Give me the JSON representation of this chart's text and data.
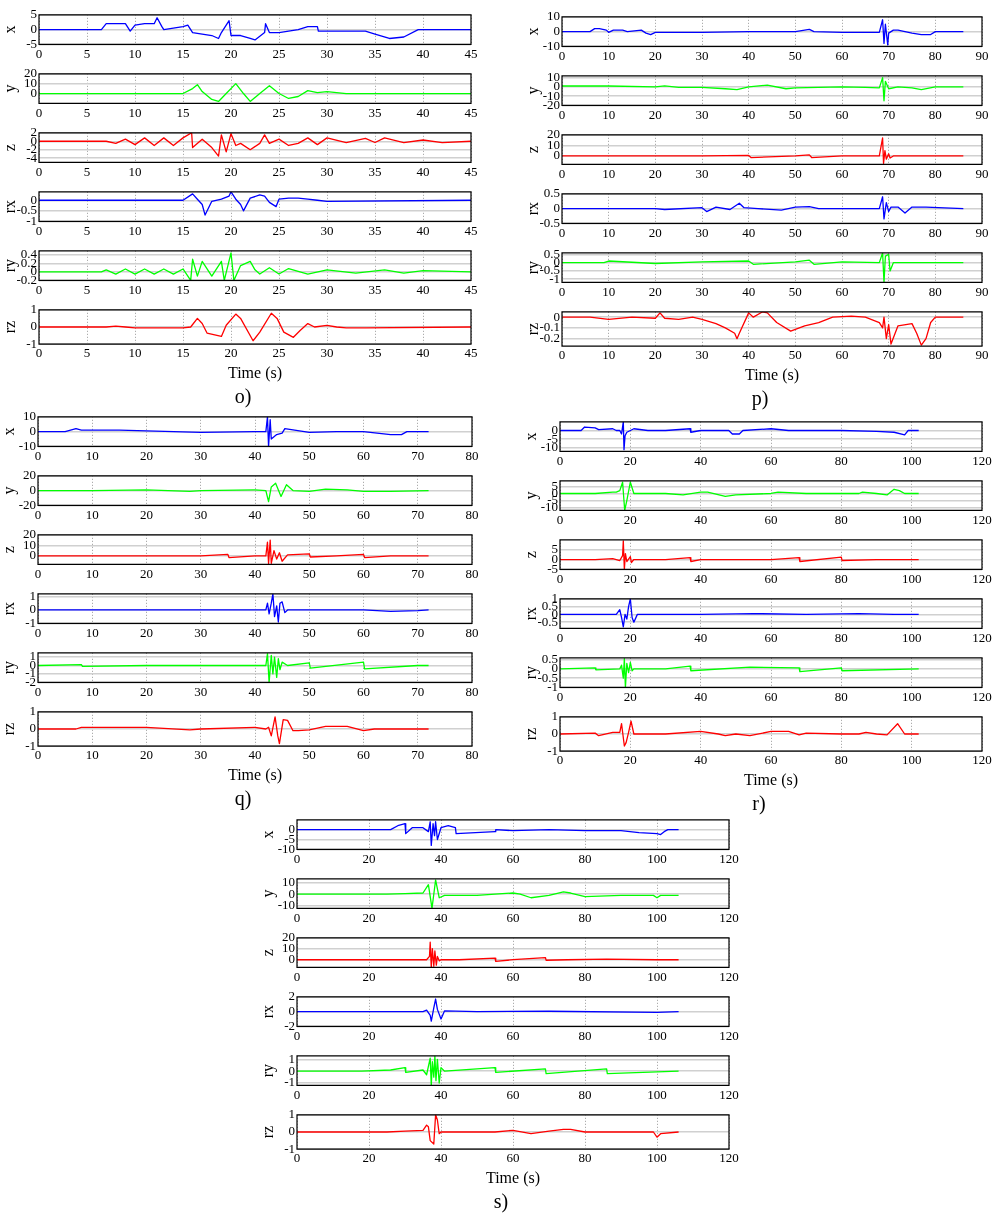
{
  "chart_data": [
    {
      "type": "line",
      "ylabel": "x",
      "color": "#0000ff",
      "xlim": [
        0,
        45
      ],
      "xticks": [
        0,
        5,
        10,
        15,
        20,
        25,
        30,
        35,
        40,
        45
      ],
      "ylim": [
        -5,
        5
      ],
      "yticks": [
        -5,
        0,
        5
      ],
      "grid": true,
      "x": [
        0,
        6.5,
        7,
        8,
        9,
        9.5,
        10,
        11,
        12,
        12.3,
        12.8,
        13,
        15,
        15.5,
        16,
        17,
        18,
        18.7,
        19,
        19.8,
        20,
        21,
        22,
        22.5,
        23.5,
        23.6,
        24,
        25,
        27,
        28,
        29,
        29.1,
        34,
        35,
        36.5,
        38,
        39.5,
        45
      ],
      "values": [
        0,
        0,
        2,
        2,
        2,
        -0.5,
        1.5,
        2,
        2,
        4,
        1,
        0,
        1,
        1.5,
        -1,
        -1.5,
        -2,
        -3,
        -1,
        3,
        -2,
        -2,
        -3,
        -3.5,
        -1,
        2,
        -1,
        -1,
        0,
        1,
        1,
        -0.5,
        -0.5,
        -1.5,
        -3,
        -2.5,
        0,
        0
      ]
    },
    {
      "type": "line",
      "ylabel": "y",
      "color": "#00ff00",
      "xlim": [
        0,
        45
      ],
      "xticks": [
        0,
        5,
        10,
        15,
        20,
        25,
        30,
        35,
        40,
        45
      ],
      "ylim": [
        -10,
        20
      ],
      "yticks": [
        0,
        10,
        20
      ],
      "grid": true,
      "x": [
        0,
        15,
        16,
        16.5,
        17,
        18,
        18.7,
        19.5,
        20.5,
        21.3,
        22,
        23,
        24,
        25,
        26,
        27,
        28,
        29,
        30,
        32,
        35,
        45
      ],
      "values": [
        0,
        0,
        5,
        9,
        2,
        -6,
        -8,
        0,
        10,
        0,
        -8,
        0,
        8,
        0,
        -5,
        -3,
        3,
        1,
        2,
        0,
        0,
        0
      ]
    },
    {
      "type": "line",
      "ylabel": "z",
      "color": "#ff0000",
      "xlim": [
        0,
        45
      ],
      "xticks": [
        0,
        5,
        10,
        15,
        20,
        25,
        30,
        35,
        40,
        45
      ],
      "ylim": [
        -5,
        2
      ],
      "yticks": [
        -4,
        -2,
        0,
        2
      ],
      "grid": true,
      "x": [
        0,
        7,
        8,
        9,
        10,
        11,
        12,
        13,
        14,
        15,
        15.9,
        16,
        17,
        18,
        18.7,
        19,
        19.5,
        20,
        20.5,
        21,
        22,
        23,
        23.5,
        24,
        25,
        26,
        27,
        28,
        29,
        30,
        32,
        34,
        35,
        36,
        38,
        40,
        42,
        45
      ],
      "values": [
        0,
        0,
        -0.5,
        0.5,
        -0.8,
        0.8,
        -1,
        0.8,
        -1,
        0.8,
        2,
        -1.5,
        0.5,
        -1.5,
        -3.5,
        1.5,
        -2.5,
        1.8,
        -1,
        -0.5,
        -2,
        -0.5,
        1.5,
        -0.5,
        0.5,
        -1,
        -0.5,
        0.8,
        -0.8,
        0.8,
        -0.3,
        0.7,
        -0.3,
        0.8,
        -0.3,
        0.3,
        -0.3,
        0
      ]
    },
    {
      "type": "line",
      "ylabel": "rx",
      "color": "#0000ff",
      "xlim": [
        0,
        45
      ],
      "xticks": [
        0,
        5,
        10,
        15,
        20,
        25,
        30,
        35,
        40,
        45
      ],
      "ylim": [
        -1,
        0.4
      ],
      "yticks": [
        -1,
        -0.5,
        0
      ],
      "grid": true,
      "x": [
        0,
        15,
        16,
        16.5,
        17,
        17.3,
        18,
        19,
        19.8,
        20,
        20.5,
        21,
        21.3,
        22,
        23,
        23.5,
        24,
        24.7,
        25,
        26,
        27,
        28,
        29,
        30,
        45
      ],
      "values": [
        0,
        0,
        0.3,
        0.05,
        -0.2,
        -0.7,
        -0.05,
        0.05,
        0.2,
        0.4,
        0.05,
        -0.2,
        -0.5,
        0.1,
        0.25,
        0.2,
        -0.1,
        -0.3,
        0.05,
        0.1,
        0.1,
        0.05,
        0,
        -0.05,
        0
      ]
    },
    {
      "type": "line",
      "ylabel": "ry",
      "color": "#00ff00",
      "xlim": [
        0,
        45
      ],
      "xticks": [
        0,
        5,
        10,
        15,
        20,
        25,
        30,
        35,
        40,
        45
      ],
      "ylim": [
        -0.2,
        0.5
      ],
      "yticks": [
        -0.2,
        0,
        0.2,
        0.4
      ],
      "grid": true,
      "x": [
        0,
        6.5,
        7,
        8,
        9,
        10,
        11,
        12,
        13,
        14,
        15,
        15.8,
        16,
        16.5,
        17,
        18,
        19,
        19.3,
        20,
        20.3,
        21,
        22,
        22.5,
        23,
        24,
        25,
        26,
        28,
        30,
        33,
        36,
        38,
        40,
        45
      ],
      "values": [
        0,
        0,
        0.05,
        -0.05,
        0.07,
        -0.05,
        0.07,
        -0.05,
        0.07,
        -0.05,
        0.07,
        -0.2,
        0.3,
        -0.1,
        0.25,
        -0.1,
        0.25,
        -0.2,
        0.45,
        -0.2,
        0.15,
        0.25,
        0.05,
        -0.05,
        0.1,
        -0.05,
        0.08,
        -0.05,
        0.05,
        -0.03,
        0.05,
        -0.03,
        0.03,
        0
      ]
    },
    {
      "type": "line",
      "ylabel": "rz",
      "xlabel": "Time (s)",
      "annotations": [
        "o)"
      ],
      "color": "#ff0000",
      "xlim": [
        0,
        45
      ],
      "xticks": [
        0,
        5,
        10,
        15,
        20,
        25,
        30,
        35,
        40,
        45
      ],
      "ylim": [
        -1,
        1
      ],
      "yticks": [
        -1,
        0,
        1
      ],
      "grid": true,
      "x": [
        0,
        7,
        8,
        9,
        10,
        15,
        15.8,
        16.5,
        17,
        17.5,
        19,
        19.5,
        20.5,
        21,
        22.3,
        23,
        24.2,
        24.8,
        25.5,
        26.5,
        27.2,
        28,
        28.7,
        30,
        31,
        32,
        34,
        45
      ],
      "values": [
        0,
        0,
        0.05,
        0,
        -0.05,
        -0.05,
        0,
        0.5,
        0.2,
        -0.35,
        -0.55,
        0.1,
        0.75,
        0.5,
        -0.8,
        -0.3,
        0.8,
        0.5,
        -0.3,
        -0.6,
        -0.2,
        0.2,
        0,
        0.1,
        0,
        -0.05,
        -0.05,
        0
      ]
    },
    {
      "type": "line",
      "ylabel": "x",
      "color": "#0000ff",
      "xlim": [
        0,
        90
      ],
      "xticks": [
        0,
        10,
        20,
        30,
        40,
        50,
        60,
        70,
        80,
        90
      ],
      "ylim": [
        -10,
        10
      ],
      "yticks": [
        -10,
        0,
        10
      ],
      "grid": true,
      "x": [
        0,
        6,
        7,
        8,
        9.5,
        10,
        11,
        13,
        14,
        17,
        18,
        19,
        20,
        30,
        40,
        50,
        53,
        54,
        60,
        68,
        68.7,
        69,
        69.3,
        69.8,
        70,
        71,
        72,
        75,
        77,
        79,
        80,
        81,
        86
      ],
      "values": [
        0,
        0,
        2,
        2,
        1,
        -0.5,
        1,
        1,
        0,
        1,
        -1,
        -2,
        -0.5,
        -0.5,
        0,
        0,
        1.5,
        0,
        -0.5,
        -0.5,
        8,
        -8,
        5,
        -9,
        -1,
        1,
        1,
        -1,
        -2,
        -2,
        0,
        0,
        0
      ]
    },
    {
      "type": "line",
      "ylabel": "y",
      "color": "#00ff00",
      "xlim": [
        0,
        90
      ],
      "xticks": [
        0,
        10,
        20,
        30,
        40,
        50,
        60,
        70,
        80,
        90
      ],
      "ylim": [
        -20,
        12
      ],
      "yticks": [
        -20,
        -10,
        0,
        10
      ],
      "grid": true,
      "x": [
        0,
        10,
        20,
        22,
        25,
        30,
        35,
        37.5,
        40,
        44,
        48,
        50,
        55,
        60,
        65,
        68,
        68.7,
        69,
        69.3,
        70,
        72,
        75,
        77,
        80,
        86
      ],
      "values": [
        1,
        1,
        0,
        1,
        -0.5,
        -0.5,
        -2,
        -3,
        0,
        2,
        -2,
        -1,
        -0.5,
        0,
        -0.5,
        -1,
        10,
        -15,
        6,
        -2,
        0,
        -1,
        -3,
        0,
        0
      ]
    },
    {
      "type": "line",
      "ylabel": "z",
      "color": "#ff0000",
      "xlim": [
        0,
        90
      ],
      "xticks": [
        0,
        10,
        20,
        30,
        40,
        50,
        60,
        70,
        80,
        90
      ],
      "ylim": [
        -8,
        20
      ],
      "yticks": [
        0,
        10,
        20
      ],
      "grid": true,
      "x": [
        0,
        20,
        30,
        40,
        40.5,
        50,
        53,
        53.5,
        60,
        68,
        68.7,
        68.9,
        69.2,
        69.5,
        70,
        70.3,
        71,
        75,
        86
      ],
      "values": [
        0,
        0,
        0,
        0.5,
        -1.5,
        0,
        1,
        -1.5,
        0,
        0,
        17,
        -7,
        5,
        -3,
        2,
        -2,
        0,
        0,
        0
      ]
    },
    {
      "type": "line",
      "ylabel": "rx",
      "color": "#0000ff",
      "xlim": [
        0,
        90
      ],
      "xticks": [
        0,
        10,
        20,
        30,
        40,
        50,
        60,
        70,
        80,
        90
      ],
      "ylim": [
        -0.5,
        0.5
      ],
      "yticks": [
        -0.5,
        0,
        0.5
      ],
      "grid": true,
      "x": [
        0,
        10,
        20,
        22,
        30,
        31,
        33,
        36,
        38,
        39,
        42,
        47,
        50,
        53,
        55,
        60,
        65,
        68,
        68.7,
        69,
        69.5,
        70,
        70.5,
        72,
        73.5,
        75,
        78,
        86
      ],
      "values": [
        0,
        0,
        0,
        -0.03,
        0.03,
        -0.1,
        0.05,
        -0.03,
        0.18,
        0.03,
        0,
        -0.05,
        0.05,
        0.07,
        0,
        0,
        0,
        0,
        0.4,
        -0.35,
        0.2,
        -0.1,
        0.05,
        0.05,
        -0.15,
        0.05,
        0.05,
        0
      ]
    },
    {
      "type": "line",
      "ylabel": "ry",
      "color": "#00ff00",
      "xlim": [
        0,
        90
      ],
      "xticks": [
        0,
        10,
        20,
        30,
        40,
        50,
        60,
        70,
        80,
        90
      ],
      "ylim": [
        -1.2,
        0.6
      ],
      "yticks": [
        -1,
        -0.5,
        0,
        0.5
      ],
      "grid": true,
      "x": [
        0,
        9,
        10,
        20,
        30,
        40,
        41,
        50,
        53,
        54,
        60,
        68,
        68.7,
        69,
        69.3,
        70,
        70.3,
        71,
        80,
        86
      ],
      "values": [
        0,
        0,
        0.1,
        -0.05,
        0.05,
        0.1,
        -0.1,
        0.05,
        0.15,
        -0.1,
        0.05,
        0,
        0.6,
        -1.2,
        0.4,
        0.5,
        -0.5,
        0,
        0,
        0
      ]
    },
    {
      "type": "line",
      "ylabel": "rz",
      "xlabel": "Time (s)",
      "annotations": [
        "p)"
      ],
      "color": "#ff0000",
      "xlim": [
        0,
        90
      ],
      "xticks": [
        0,
        10,
        20,
        30,
        40,
        50,
        60,
        70,
        80,
        90
      ],
      "ylim": [
        -0.27,
        0.05
      ],
      "yticks": [
        -0.2,
        -0.1,
        0
      ],
      "grid": true,
      "x": [
        0,
        6,
        10,
        15,
        20,
        21,
        22,
        25,
        28,
        30,
        33,
        35,
        37,
        37.5,
        38,
        40,
        41,
        43,
        44,
        46,
        49,
        52,
        55,
        58,
        62,
        65,
        68,
        68.7,
        69,
        69.5,
        70,
        70.5,
        72,
        75,
        76,
        77,
        78,
        79,
        80,
        86
      ],
      "values": [
        0,
        0,
        -0.02,
        0,
        -0.01,
        0.04,
        -0.01,
        -0.02,
        0,
        -0.02,
        -0.06,
        -0.1,
        -0.15,
        -0.2,
        -0.15,
        0.04,
        0,
        0.05,
        0.04,
        -0.05,
        -0.13,
        -0.08,
        -0.05,
        0,
        0.01,
        0,
        -0.05,
        -0.1,
        0,
        -0.2,
        -0.07,
        -0.25,
        -0.08,
        -0.06,
        -0.15,
        -0.26,
        -0.2,
        -0.05,
        0,
        0
      ]
    },
    {
      "type": "line",
      "ylabel": "x",
      "color": "#0000ff",
      "xlim": [
        0,
        80
      ],
      "xticks": [
        0,
        10,
        20,
        30,
        40,
        50,
        60,
        70,
        80
      ],
      "ylim": [
        -10,
        10
      ],
      "yticks": [
        -10,
        0,
        10
      ],
      "grid": true,
      "x": [
        0,
        5,
        7,
        8,
        10,
        15,
        20,
        30,
        40,
        42,
        42.3,
        42.5,
        42.8,
        43,
        44,
        45,
        45.5,
        50,
        55,
        60,
        65,
        67,
        68,
        72
      ],
      "values": [
        0,
        0,
        2,
        1,
        1,
        1,
        0.5,
        -0.5,
        0,
        0,
        10,
        -10,
        8,
        -5,
        -2,
        -1,
        2,
        -0.5,
        0,
        0,
        -2,
        -2,
        0,
        0
      ]
    },
    {
      "type": "line",
      "ylabel": "y",
      "color": "#00ff00",
      "xlim": [
        0,
        80
      ],
      "xticks": [
        0,
        10,
        20,
        30,
        40,
        50,
        60,
        70,
        80
      ],
      "ylim": [
        -20,
        20
      ],
      "yticks": [
        -20,
        0,
        20
      ],
      "grid": true,
      "x": [
        0,
        10,
        20,
        28,
        30,
        40,
        42,
        42.5,
        43,
        43.8,
        44.8,
        45.8,
        47,
        50,
        53,
        57,
        60,
        65,
        72
      ],
      "values": [
        0,
        0,
        1,
        -1,
        0,
        1,
        0,
        -15,
        5,
        10,
        -8,
        8,
        0,
        -1,
        2,
        1,
        -1,
        -1,
        0
      ]
    },
    {
      "type": "line",
      "ylabel": "z",
      "color": "#ff0000",
      "xlim": [
        0,
        80
      ],
      "xticks": [
        0,
        10,
        20,
        30,
        40,
        50,
        60,
        70,
        80
      ],
      "ylim": [
        -8,
        20
      ],
      "yticks": [
        0,
        10,
        20
      ],
      "grid": true,
      "x": [
        0,
        30,
        35,
        35.2,
        40,
        42,
        42.3,
        42.5,
        42.8,
        43,
        43.5,
        44,
        44.5,
        45,
        46,
        50,
        50.2,
        55,
        60,
        60.2,
        65,
        72
      ],
      "values": [
        0,
        0,
        1.5,
        -1.5,
        0,
        0,
        13,
        -7,
        15,
        -7,
        5,
        -3,
        3,
        -5,
        1,
        2,
        -1,
        0,
        1.5,
        -1.5,
        0,
        0
      ]
    },
    {
      "type": "line",
      "ylabel": "rx",
      "color": "#0000ff",
      "xlim": [
        0,
        80
      ],
      "xticks": [
        0,
        10,
        20,
        30,
        40,
        50,
        60,
        70,
        80
      ],
      "ylim": [
        -1,
        1.2
      ],
      "yticks": [
        -1,
        0,
        1
      ],
      "grid": true,
      "x": [
        0,
        40,
        42,
        42.3,
        42.6,
        43,
        43.3,
        43.6,
        44,
        44.3,
        44.6,
        45,
        45.5,
        46,
        50,
        60,
        65,
        70,
        72
      ],
      "values": [
        0,
        0,
        0,
        0.5,
        -0.3,
        0.5,
        1.2,
        -0.5,
        0.3,
        -0.9,
        0.5,
        0.6,
        -0.2,
        0,
        0,
        0,
        -0.1,
        -0.05,
        0
      ]
    },
    {
      "type": "line",
      "ylabel": "ry",
      "color": "#00ff00",
      "xlim": [
        0,
        80
      ],
      "xticks": [
        0,
        10,
        20,
        30,
        40,
        50,
        60,
        70,
        80
      ],
      "ylim": [
        -2,
        1.5
      ],
      "yticks": [
        -2,
        -1,
        0,
        1
      ],
      "grid": true,
      "x": [
        0,
        8,
        8.2,
        20,
        30,
        40,
        42,
        42.3,
        42.6,
        43,
        43.3,
        43.6,
        44,
        44.3,
        44.6,
        45,
        46,
        50,
        50.2,
        60,
        60.2,
        70,
        72
      ],
      "values": [
        0,
        0.1,
        -0.1,
        0,
        0,
        0,
        0,
        1.4,
        -2,
        1.2,
        -1,
        1,
        -1.4,
        0.8,
        -0.5,
        0.4,
        0,
        0.3,
        -0.3,
        0.4,
        -0.4,
        0,
        0
      ]
    },
    {
      "type": "line",
      "ylabel": "rz",
      "xlabel": "Time (s)",
      "annotations": [
        "q)"
      ],
      "color": "#ff0000",
      "xlim": [
        0,
        80
      ],
      "xticks": [
        0,
        10,
        20,
        30,
        40,
        50,
        60,
        70,
        80
      ],
      "ylim": [
        -1,
        1
      ],
      "yticks": [
        -1,
        0,
        1
      ],
      "grid": true,
      "x": [
        0,
        7,
        8,
        15,
        20,
        28,
        30,
        40,
        42,
        42.5,
        43,
        43.7,
        44.2,
        44.5,
        45.2,
        46,
        47,
        48,
        50,
        53,
        57,
        60,
        62,
        65,
        72
      ],
      "values": [
        0,
        0,
        0.1,
        0.1,
        0.1,
        -0.05,
        0,
        0.1,
        0,
        0.1,
        -0.4,
        0.7,
        -0.4,
        -0.85,
        0.55,
        0.5,
        -0.1,
        -0.1,
        -0.05,
        0.15,
        0.15,
        -0.1,
        0,
        0,
        0
      ]
    },
    {
      "type": "line",
      "ylabel": "x",
      "color": "#0000ff",
      "xlim": [
        0,
        120
      ],
      "xticks": [
        0,
        20,
        40,
        60,
        80,
        100,
        120
      ],
      "ylim": [
        -12,
        5
      ],
      "yticks": [
        -10,
        -5,
        0
      ],
      "grid": true,
      "x": [
        0,
        6,
        7,
        10,
        11,
        15,
        16,
        17,
        17.5,
        18,
        18.2,
        18.5,
        19,
        20,
        21,
        25,
        30,
        37,
        37.2,
        40,
        48,
        49,
        51,
        52,
        60,
        65,
        80,
        90,
        95,
        98,
        99,
        102
      ],
      "values": [
        0,
        0,
        2,
        1.5,
        0.5,
        1,
        0,
        0,
        -2,
        5,
        -11,
        -3,
        -1,
        0,
        1,
        0,
        0,
        1,
        -1,
        0,
        0,
        -2,
        -2,
        0,
        1,
        0,
        0,
        -0.5,
        -1,
        -2.5,
        0,
        0
      ]
    },
    {
      "type": "line",
      "ylabel": "y",
      "color": "#00ff00",
      "xlim": [
        0,
        120
      ],
      "xticks": [
        0,
        20,
        40,
        60,
        80,
        100,
        120
      ],
      "ylim": [
        -12,
        9
      ],
      "yticks": [
        -10,
        -5,
        0,
        5
      ],
      "grid": true,
      "x": [
        0,
        10,
        15,
        16,
        17,
        17.8,
        18.4,
        19,
        20,
        21,
        25,
        30,
        35,
        40,
        42,
        47,
        50,
        60,
        62,
        70,
        80,
        85,
        86,
        90,
        93,
        95,
        96.5,
        98,
        100,
        102
      ],
      "values": [
        0,
        0,
        1,
        1,
        2,
        8,
        -12,
        -5,
        8,
        0,
        0,
        0,
        -1,
        1,
        1,
        -2,
        -1,
        0,
        1,
        0,
        0,
        0,
        1,
        0,
        -1,
        3,
        2,
        0,
        0,
        0
      ]
    },
    {
      "type": "line",
      "ylabel": "z",
      "color": "#ff0000",
      "xlim": [
        0,
        120
      ],
      "xticks": [
        0,
        20,
        40,
        60,
        80,
        100,
        120
      ],
      "ylim": [
        -5,
        10
      ],
      "yticks": [
        -5,
        0,
        5
      ],
      "grid": true,
      "x": [
        0,
        10,
        15,
        17,
        17.8,
        18,
        18.3,
        18.6,
        19,
        20,
        20.3,
        21,
        30,
        37,
        37.2,
        40,
        60,
        68,
        68.2,
        80,
        80.2,
        90,
        102
      ],
      "values": [
        0,
        0,
        0.5,
        -0.5,
        2,
        9.5,
        -5,
        3,
        -1,
        1.5,
        -1.5,
        0,
        0,
        1,
        -1,
        0,
        0,
        1,
        -1,
        1.2,
        -0.5,
        0,
        0
      ]
    },
    {
      "type": "line",
      "ylabel": "rx",
      "color": "#0000ff",
      "xlim": [
        0,
        120
      ],
      "xticks": [
        0,
        20,
        40,
        60,
        80,
        100,
        120
      ],
      "ylim": [
        -0.9,
        1
      ],
      "yticks": [
        -0.5,
        0,
        0.5,
        1
      ],
      "grid": true,
      "x": [
        0,
        10,
        16,
        17,
        17.5,
        18,
        18.5,
        19,
        19.5,
        20,
        20.5,
        21,
        22,
        30,
        40,
        55,
        70,
        85,
        95,
        102
      ],
      "values": [
        0,
        0,
        0,
        0.3,
        -0.2,
        -0.8,
        0,
        -0.3,
        0.5,
        1,
        -0.2,
        -0.5,
        0,
        0,
        0,
        0.05,
        0,
        0.05,
        0,
        0
      ]
    },
    {
      "type": "line",
      "ylabel": "ry",
      "color": "#00ff00",
      "xlim": [
        0,
        120
      ],
      "xticks": [
        0,
        20,
        40,
        60,
        80,
        100,
        120
      ],
      "ylim": [
        -1,
        0.6
      ],
      "yticks": [
        -1,
        -0.5,
        0,
        0.5
      ],
      "grid": true,
      "x": [
        0,
        10,
        10.2,
        17,
        17.5,
        18,
        18.3,
        18.6,
        19,
        19.5,
        20,
        20.5,
        21,
        30,
        37,
        37.2,
        54,
        68,
        68.2,
        80,
        80.2,
        102
      ],
      "values": [
        0,
        0.05,
        -0.05,
        0,
        0.2,
        -0.5,
        0.55,
        -1,
        0.3,
        -0.2,
        0.35,
        -0.1,
        0,
        0,
        0.15,
        -0.1,
        0.1,
        0.05,
        -0.15,
        0.05,
        -0.1,
        0
      ]
    },
    {
      "type": "line",
      "ylabel": "rz",
      "xlabel": "Time (s)",
      "annotations": [
        "r)"
      ],
      "color": "#ff0000",
      "xlim": [
        0,
        120
      ],
      "xticks": [
        0,
        20,
        40,
        60,
        80,
        100,
        120
      ],
      "ylim": [
        -1,
        1
      ],
      "yticks": [
        -1,
        0,
        1
      ],
      "grid": true,
      "x": [
        0,
        10,
        11,
        15,
        17,
        17.5,
        18.3,
        18.8,
        19.5,
        20.2,
        21,
        25,
        30,
        40,
        45,
        47,
        50,
        54,
        60,
        65,
        68,
        70,
        80,
        85,
        87,
        90,
        93,
        96,
        98,
        102
      ],
      "values": [
        0,
        0.05,
        -0.1,
        0.1,
        0.1,
        0.6,
        -0.7,
        -0.5,
        0.1,
        0.75,
        0,
        0,
        0,
        0.15,
        0,
        -0.1,
        0,
        -0.1,
        0.15,
        0.15,
        -0.05,
        0.05,
        0,
        0,
        0.1,
        0,
        -0.05,
        0.6,
        0,
        0
      ]
    },
    {
      "type": "line",
      "ylabel": "x",
      "color": "#0000ff",
      "xlim": [
        0,
        120
      ],
      "xticks": [
        0,
        20,
        40,
        60,
        80,
        100,
        120
      ],
      "ylim": [
        -10,
        5
      ],
      "yticks": [
        -10,
        -5,
        0
      ],
      "grid": true,
      "x": [
        0,
        26,
        28,
        30,
        30.2,
        32,
        35,
        36.5,
        37,
        37.3,
        37.8,
        38.2,
        38.5,
        39,
        40,
        42,
        44,
        44.2,
        55,
        55.2,
        60,
        70,
        80,
        90,
        95,
        100,
        101,
        102,
        103,
        106
      ],
      "values": [
        0,
        0,
        2,
        3,
        -2,
        1,
        1,
        -1,
        4,
        -8,
        3,
        -3,
        4,
        -5,
        1,
        2,
        1,
        -2,
        -1,
        0,
        -0.5,
        0,
        -0.5,
        -0.5,
        -1.5,
        -2,
        -2.5,
        -1,
        0,
        0
      ]
    },
    {
      "type": "line",
      "ylabel": "y",
      "color": "#00ff00",
      "xlim": [
        0,
        120
      ],
      "xticks": [
        0,
        20,
        40,
        60,
        80,
        100,
        120
      ],
      "ylim": [
        -12,
        13
      ],
      "yticks": [
        -10,
        0,
        10
      ],
      "grid": true,
      "x": [
        0,
        25,
        30,
        35,
        36.5,
        37.5,
        38.5,
        39.5,
        41,
        45,
        50,
        55,
        60,
        62,
        65,
        70,
        74,
        76,
        80,
        90,
        99,
        100,
        101,
        106
      ],
      "values": [
        0,
        0,
        0.5,
        1,
        8,
        -12,
        12,
        -3,
        -1,
        -1,
        -1,
        0,
        1,
        0,
        -3,
        -1,
        2,
        1,
        -2,
        -1,
        -1,
        -3,
        -1,
        -1
      ]
    },
    {
      "type": "line",
      "ylabel": "z",
      "color": "#ff0000",
      "xlim": [
        0,
        120
      ],
      "xticks": [
        0,
        20,
        40,
        60,
        80,
        100,
        120
      ],
      "ylim": [
        -7,
        20
      ],
      "yticks": [
        0,
        10,
        20
      ],
      "grid": true,
      "x": [
        0,
        30,
        36,
        36.8,
        37,
        37.3,
        37.6,
        38,
        38.3,
        38.7,
        39,
        39.5,
        40,
        45,
        55,
        55.2,
        60,
        69,
        69.2,
        75,
        86,
        100,
        106
      ],
      "values": [
        0,
        0,
        0,
        3,
        16,
        -7,
        10,
        -6,
        8,
        -5,
        3,
        -1,
        0,
        0,
        1.5,
        -1.5,
        0,
        2,
        -0.5,
        0,
        0.5,
        0,
        0
      ]
    },
    {
      "type": "line",
      "ylabel": "rx",
      "color": "#0000ff",
      "xlim": [
        0,
        120
      ],
      "xticks": [
        0,
        20,
        40,
        60,
        80,
        100,
        120
      ],
      "ylim": [
        -2,
        2
      ],
      "yticks": [
        -2,
        0,
        2
      ],
      "grid": true,
      "x": [
        0,
        30,
        35,
        36,
        37,
        37.3,
        38,
        38.5,
        39,
        40,
        41,
        50,
        70,
        100,
        106
      ],
      "values": [
        0,
        0,
        0,
        0.2,
        -0.5,
        -1.3,
        0.5,
        1.7,
        0.3,
        -1,
        0.1,
        0,
        0.05,
        -0.1,
        0
      ]
    },
    {
      "type": "line",
      "ylabel": "ry",
      "color": "#00ff00",
      "xlim": [
        0,
        120
      ],
      "xticks": [
        0,
        20,
        40,
        60,
        80,
        100,
        120
      ],
      "ylim": [
        -1.2,
        1.3
      ],
      "yticks": [
        -1,
        0,
        1
      ],
      "grid": true,
      "x": [
        0,
        18,
        26,
        30,
        30.2,
        35,
        36,
        37,
        37.3,
        37.6,
        38,
        38.3,
        38.6,
        39,
        39.5,
        40,
        41,
        55,
        55.2,
        69,
        69.2,
        86,
        86.2,
        106
      ],
      "values": [
        0,
        0,
        0.1,
        0.3,
        -0.1,
        0.1,
        -0.3,
        1.1,
        -1.2,
        0.8,
        -0.5,
        1.3,
        -0.8,
        1,
        -1,
        0.3,
        0,
        0.3,
        -0.1,
        0.2,
        -0.2,
        0.2,
        -0.2,
        0
      ]
    },
    {
      "type": "line",
      "ylabel": "rz",
      "xlabel": "Time (s)",
      "annotations": [
        "s)"
      ],
      "color": "#ff0000",
      "xlim": [
        0,
        120
      ],
      "xticks": [
        0,
        20,
        40,
        60,
        80,
        100,
        120
      ],
      "ylim": [
        -1,
        1
      ],
      "yticks": [
        -1,
        0,
        1
      ],
      "grid": true,
      "x": [
        0,
        25,
        30,
        35,
        36,
        36.5,
        37,
        38,
        38.5,
        39,
        39.5,
        40,
        45,
        55,
        60,
        65,
        70,
        74,
        76,
        80,
        90,
        99,
        100,
        101,
        106
      ],
      "values": [
        0,
        0,
        0.05,
        0.1,
        0.4,
        0.3,
        -0.5,
        -0.7,
        1,
        0.7,
        -0.1,
        0,
        0,
        0,
        0.1,
        -0.1,
        0.05,
        0.15,
        0.15,
        0,
        0,
        0,
        -0.3,
        -0.1,
        0
      ]
    }
  ]
}
